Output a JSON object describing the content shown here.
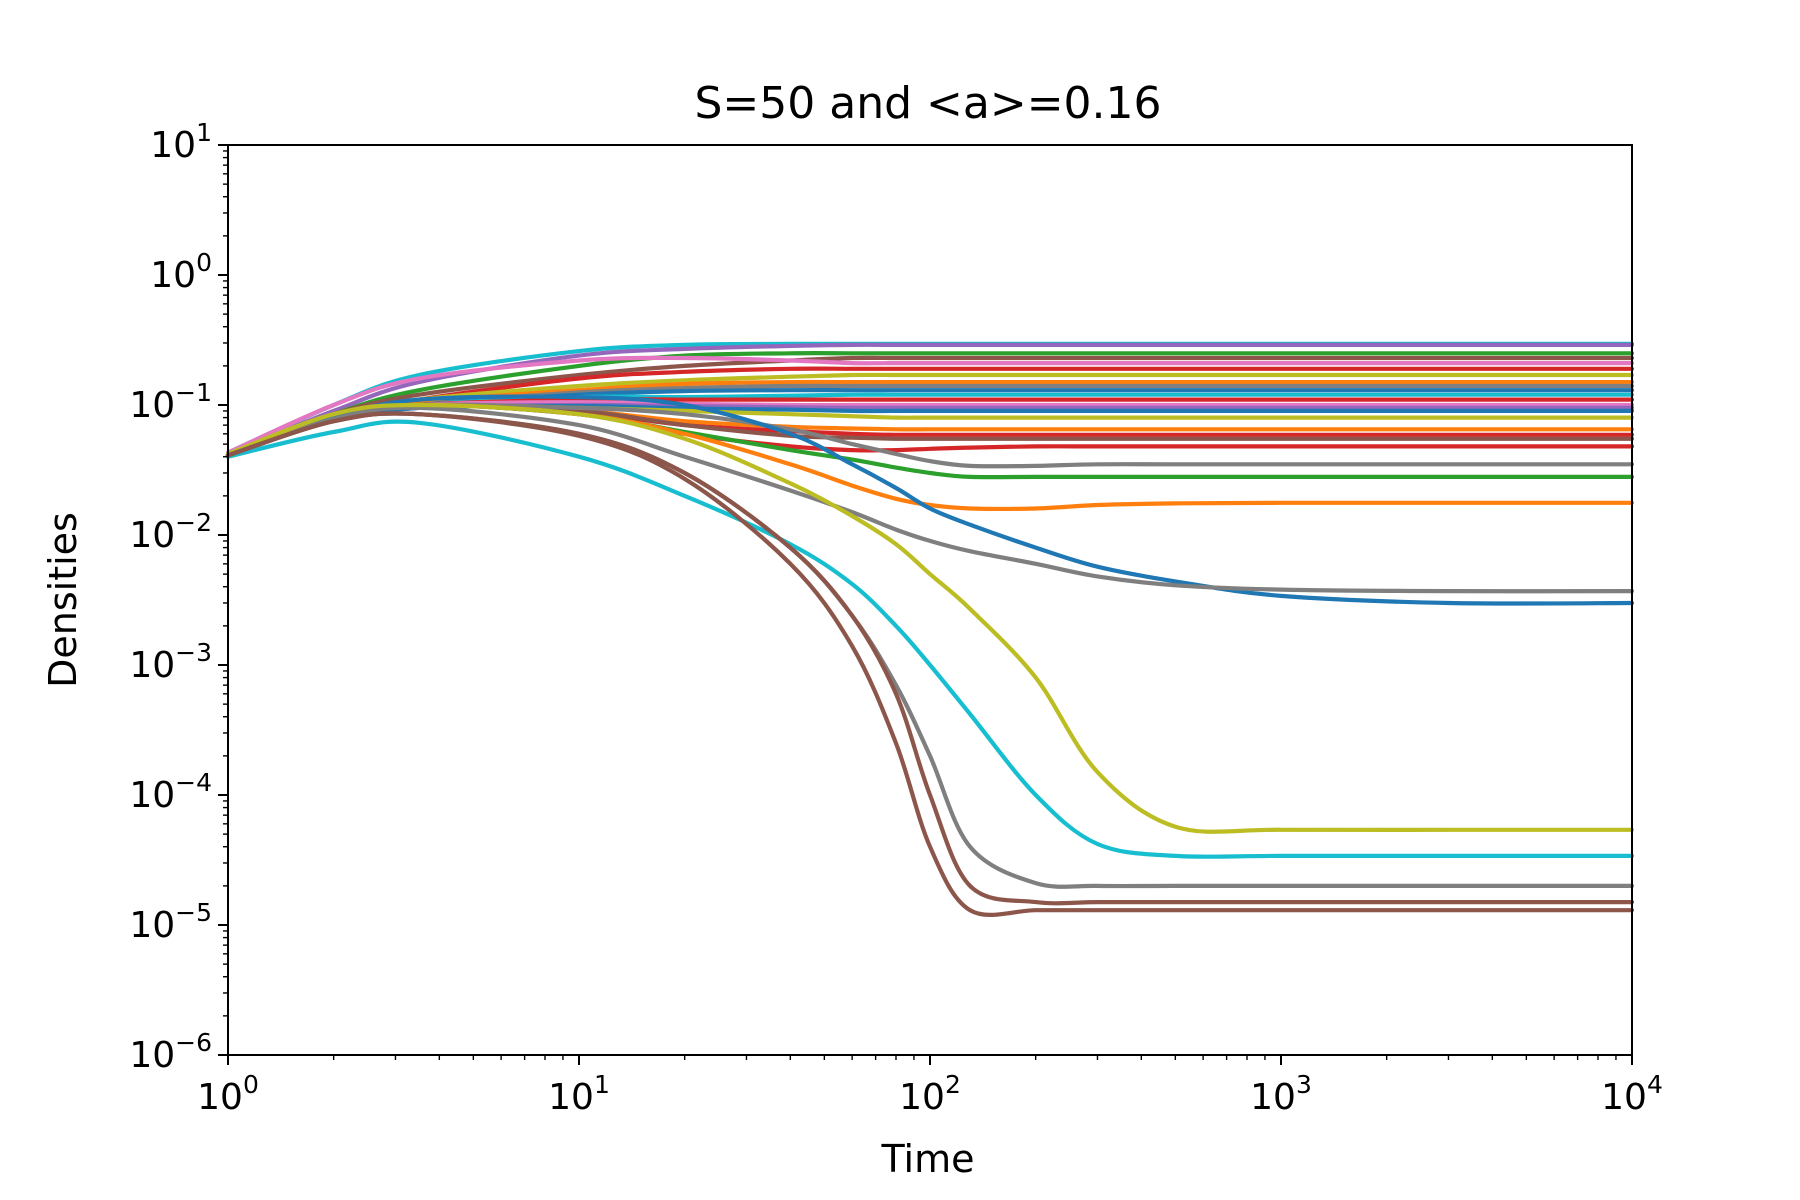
{
  "chart_data": {
    "type": "line",
    "title": "S=50 and <a>=0.16",
    "xlabel": "Time",
    "ylabel": "Densities",
    "xscale": "log",
    "yscale": "log",
    "xlim": [
      1,
      10000
    ],
    "ylim": [
      1e-06,
      10
    ],
    "grid": false,
    "legend": "none",
    "x_ticks": [
      {
        "base": "10",
        "exp": "0"
      },
      {
        "base": "10",
        "exp": "1"
      },
      {
        "base": "10",
        "exp": "2"
      },
      {
        "base": "10",
        "exp": "3"
      },
      {
        "base": "10",
        "exp": "4"
      }
    ],
    "y_ticks": [
      {
        "base": "10",
        "exp": "1"
      },
      {
        "base": "10",
        "exp": "0"
      },
      {
        "base": "10",
        "exp": "−1"
      },
      {
        "base": "10",
        "exp": "−2"
      },
      {
        "base": "10",
        "exp": "−3"
      },
      {
        "base": "10",
        "exp": "−4"
      },
      {
        "base": "10",
        "exp": "−5"
      },
      {
        "base": "10",
        "exp": "−6"
      }
    ],
    "x": [
      1,
      2,
      3.5,
      10,
      20,
      40,
      60,
      80,
      100,
      130,
      200,
      300,
      500,
      1000,
      3000,
      10000
    ],
    "series": [
      {
        "color": "#17becf",
        "values": [
          0.043,
          0.1,
          0.17,
          0.26,
          0.29,
          0.295,
          0.295,
          0.295,
          0.295,
          0.295,
          0.295,
          0.295,
          0.295,
          0.295,
          0.295,
          0.295
        ]
      },
      {
        "color": "#9467bd",
        "values": [
          0.042,
          0.09,
          0.15,
          0.24,
          0.27,
          0.285,
          0.29,
          0.29,
          0.29,
          0.29,
          0.29,
          0.29,
          0.29,
          0.29,
          0.29,
          0.29
        ]
      },
      {
        "color": "#2ca02c",
        "values": [
          0.041,
          0.085,
          0.13,
          0.2,
          0.24,
          0.25,
          0.25,
          0.25,
          0.25,
          0.25,
          0.25,
          0.25,
          0.25,
          0.25,
          0.25,
          0.25
        ]
      },
      {
        "color": "#8c564b",
        "values": [
          0.042,
          0.085,
          0.12,
          0.17,
          0.2,
          0.22,
          0.23,
          0.23,
          0.23,
          0.23,
          0.23,
          0.23,
          0.23,
          0.23,
          0.23,
          0.23
        ]
      },
      {
        "color": "#e377c2",
        "values": [
          0.043,
          0.1,
          0.16,
          0.22,
          0.23,
          0.22,
          0.21,
          0.21,
          0.21,
          0.21,
          0.21,
          0.21,
          0.21,
          0.21,
          0.21,
          0.21
        ]
      },
      {
        "color": "#d62728",
        "values": [
          0.041,
          0.08,
          0.11,
          0.16,
          0.18,
          0.19,
          0.19,
          0.19,
          0.19,
          0.19,
          0.19,
          0.19,
          0.19,
          0.19,
          0.19,
          0.19
        ]
      },
      {
        "color": "#bcbd22",
        "values": [
          0.041,
          0.08,
          0.11,
          0.14,
          0.155,
          0.165,
          0.17,
          0.17,
          0.17,
          0.17,
          0.17,
          0.17,
          0.17,
          0.17,
          0.17,
          0.17
        ]
      },
      {
        "color": "#ff7f0e",
        "values": [
          0.041,
          0.08,
          0.105,
          0.13,
          0.145,
          0.15,
          0.15,
          0.15,
          0.15,
          0.15,
          0.15,
          0.15,
          0.15,
          0.15,
          0.15,
          0.15
        ]
      },
      {
        "color": "#7f7f7f",
        "values": [
          0.041,
          0.078,
          0.1,
          0.125,
          0.135,
          0.14,
          0.14,
          0.14,
          0.14,
          0.14,
          0.14,
          0.14,
          0.14,
          0.14,
          0.14,
          0.14
        ]
      },
      {
        "color": "#1f77b4",
        "values": [
          0.041,
          0.078,
          0.1,
          0.12,
          0.128,
          0.13,
          0.13,
          0.13,
          0.13,
          0.13,
          0.13,
          0.13,
          0.13,
          0.13,
          0.13,
          0.13
        ]
      },
      {
        "color": "#17becf",
        "values": [
          0.042,
          0.08,
          0.1,
          0.115,
          0.115,
          0.118,
          0.12,
          0.12,
          0.12,
          0.12,
          0.12,
          0.12,
          0.12,
          0.12,
          0.12,
          0.12
        ]
      },
      {
        "color": "#d62728",
        "values": [
          0.041,
          0.078,
          0.1,
          0.11,
          0.11,
          0.11,
          0.11,
          0.11,
          0.11,
          0.11,
          0.11,
          0.11,
          0.11,
          0.11,
          0.11,
          0.11
        ]
      },
      {
        "color": "#e377c2",
        "values": [
          0.041,
          0.077,
          0.1,
          0.105,
          0.102,
          0.1,
          0.1,
          0.1,
          0.1,
          0.1,
          0.1,
          0.1,
          0.1,
          0.1,
          0.1,
          0.1
        ]
      },
      {
        "color": "#9467bd",
        "values": [
          0.041,
          0.076,
          0.095,
          0.1,
          0.098,
          0.096,
          0.095,
          0.095,
          0.095,
          0.095,
          0.095,
          0.095,
          0.095,
          0.095,
          0.095,
          0.095
        ]
      },
      {
        "color": "#1f77b4",
        "values": [
          0.041,
          0.076,
          0.095,
          0.098,
          0.094,
          0.092,
          0.09,
          0.09,
          0.09,
          0.09,
          0.09,
          0.09,
          0.09,
          0.09,
          0.09,
          0.09
        ]
      },
      {
        "color": "#bcbd22",
        "values": [
          0.042,
          0.085,
          0.1,
          0.095,
          0.09,
          0.085,
          0.082,
          0.08,
          0.08,
          0.08,
          0.08,
          0.08,
          0.08,
          0.08,
          0.08,
          0.08
        ]
      },
      {
        "color": "#ff7f0e",
        "values": [
          0.041,
          0.078,
          0.1,
          0.09,
          0.075,
          0.068,
          0.066,
          0.065,
          0.065,
          0.065,
          0.065,
          0.065,
          0.065,
          0.065,
          0.065,
          0.065
        ]
      },
      {
        "color": "#d62728",
        "values": [
          0.041,
          0.078,
          0.1,
          0.088,
          0.07,
          0.063,
          0.06,
          0.059,
          0.059,
          0.059,
          0.059,
          0.059,
          0.059,
          0.059,
          0.059,
          0.059
        ]
      },
      {
        "color": "#8c564b",
        "values": [
          0.041,
          0.078,
          0.1,
          0.09,
          0.07,
          0.058,
          0.056,
          0.055,
          0.055,
          0.055,
          0.055,
          0.055,
          0.055,
          0.055,
          0.055,
          0.055
        ]
      },
      {
        "color": "#d62728",
        "values": [
          0.041,
          0.078,
          0.1,
          0.085,
          0.06,
          0.048,
          0.045,
          0.045,
          0.046,
          0.047,
          0.048,
          0.048,
          0.048,
          0.048,
          0.048,
          0.048
        ]
      },
      {
        "color": "#7f7f7f",
        "values": [
          0.041,
          0.08,
          0.1,
          0.095,
          0.085,
          0.065,
          0.05,
          0.042,
          0.037,
          0.034,
          0.034,
          0.035,
          0.035,
          0.035,
          0.035,
          0.035
        ]
      },
      {
        "color": "#2ca02c",
        "values": [
          0.041,
          0.078,
          0.1,
          0.085,
          0.062,
          0.045,
          0.038,
          0.033,
          0.03,
          0.028,
          0.028,
          0.028,
          0.028,
          0.028,
          0.028,
          0.028
        ]
      },
      {
        "color": "#ff7f0e",
        "values": [
          0.041,
          0.078,
          0.1,
          0.085,
          0.06,
          0.035,
          0.024,
          0.019,
          0.017,
          0.016,
          0.016,
          0.017,
          0.0175,
          0.0177,
          0.0177,
          0.0177
        ]
      },
      {
        "color": "#1f77b4",
        "values": [
          0.041,
          0.08,
          0.11,
          0.115,
          0.1,
          0.06,
          0.035,
          0.023,
          0.016,
          0.012,
          0.008,
          0.0057,
          0.0044,
          0.0034,
          0.003,
          0.003
        ]
      },
      {
        "color": "#7f7f7f",
        "values": [
          0.041,
          0.078,
          0.095,
          0.07,
          0.04,
          0.022,
          0.015,
          0.011,
          0.009,
          0.0075,
          0.006,
          0.0048,
          0.0041,
          0.0038,
          0.0037,
          0.0037
        ]
      },
      {
        "color": "#bcbd22",
        "values": [
          0.042,
          0.085,
          0.1,
          0.085,
          0.055,
          0.025,
          0.014,
          0.0085,
          0.005,
          0.0027,
          0.0008,
          0.00015,
          5.7e-05,
          5.4e-05,
          5.4e-05,
          5.4e-05
        ]
      },
      {
        "color": "#17becf",
        "values": [
          0.04,
          0.062,
          0.073,
          0.04,
          0.02,
          0.0085,
          0.0042,
          0.002,
          0.001,
          0.00042,
          0.0001,
          4.2e-05,
          3.4e-05,
          3.4e-05,
          3.4e-05,
          3.4e-05
        ]
      },
      {
        "color": "#7f7f7f",
        "values": [
          0.041,
          0.075,
          0.085,
          0.06,
          0.03,
          0.008,
          0.0024,
          0.0007,
          0.0002,
          4e-05,
          2.1e-05,
          2e-05,
          2e-05,
          2e-05,
          2e-05,
          2e-05
        ]
      },
      {
        "color": "#8c564b",
        "values": [
          0.041,
          0.075,
          0.085,
          0.06,
          0.03,
          0.008,
          0.0024,
          0.0006,
          0.0001,
          2e-05,
          1.5e-05,
          1.5e-05,
          1.5e-05,
          1.5e-05,
          1.5e-05,
          1.5e-05
        ]
      },
      {
        "color": "#8c564b",
        "values": [
          0.041,
          0.075,
          0.085,
          0.058,
          0.027,
          0.006,
          0.0014,
          0.00025,
          4e-05,
          1.3e-05,
          1.3e-05,
          1.3e-05,
          1.3e-05,
          1.3e-05,
          1.3e-05,
          1.3e-05
        ]
      }
    ]
  }
}
